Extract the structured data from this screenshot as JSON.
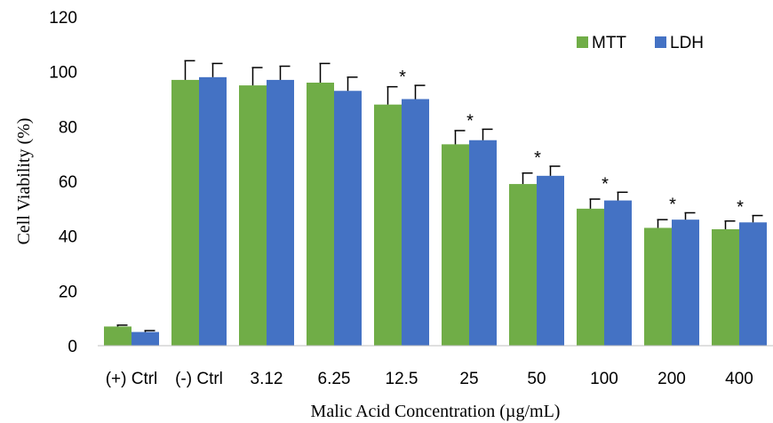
{
  "chart_data": {
    "type": "bar",
    "title": "",
    "xlabel": "Malic Acid Concentration (µg/mL)",
    "ylabel": "Cell Viability (%)",
    "ylim": [
      0,
      120
    ],
    "yticks": [
      0,
      20,
      40,
      60,
      80,
      100,
      120
    ],
    "grid": false,
    "legend_position": "top-right",
    "categories": [
      "(+) Ctrl",
      "(-) Ctrl",
      "3.12",
      "6.25",
      "12.5",
      "25",
      "50",
      "100",
      "200",
      "400"
    ],
    "series": [
      {
        "name": "MTT",
        "color": "#70ad47",
        "values": [
          7,
          97,
          95,
          96,
          88,
          73.5,
          59,
          50,
          43,
          42.5
        ],
        "errors": [
          0.5,
          7,
          6.5,
          7,
          6.5,
          5,
          4,
          3.5,
          3,
          3
        ]
      },
      {
        "name": "LDH",
        "color": "#4472c4",
        "values": [
          5,
          98,
          97,
          93,
          90,
          75,
          62,
          53,
          46,
          45
        ],
        "errors": [
          0.5,
          5,
          5,
          5,
          5,
          4,
          3.5,
          3,
          2.5,
          2.5
        ]
      }
    ],
    "annotations": [
      {
        "category": "12.5",
        "text": "*"
      },
      {
        "category": "25",
        "text": "*"
      },
      {
        "category": "50",
        "text": "*"
      },
      {
        "category": "100",
        "text": "*"
      },
      {
        "category": "200",
        "text": "*"
      },
      {
        "category": "400",
        "text": "*"
      }
    ]
  }
}
